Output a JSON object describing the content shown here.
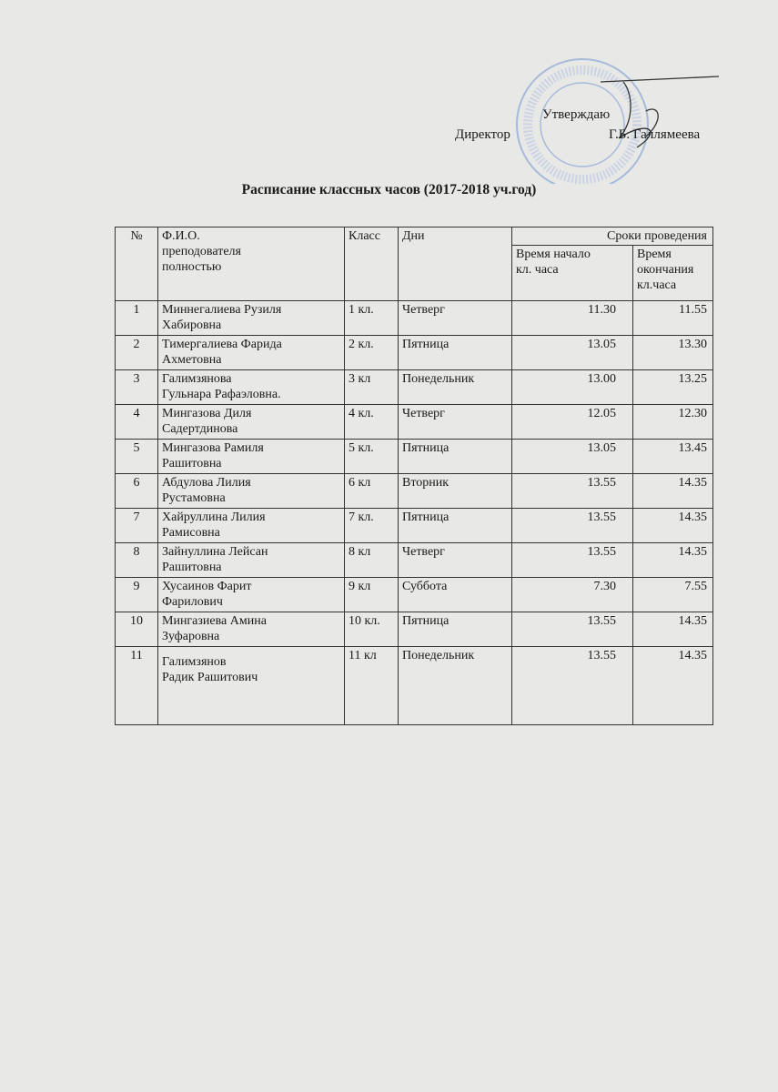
{
  "approval": {
    "approve": "Утверждаю",
    "position": "Директор",
    "name": "Г.Б. Галлямеева"
  },
  "title": "Расписание классных часов (2017-2018 уч.год)",
  "table": {
    "headers": {
      "num": "№",
      "fio_1": "Ф.И.О.",
      "fio_2": "преподователя",
      "fio_3": "полностью",
      "class": "Класс",
      "days": "Дни",
      "period": "Сроки проведения",
      "start_1": "Время начало",
      "start_2": "кл. часа",
      "end_1": "Время",
      "end_2": "окончания",
      "end_3": "кл.часа"
    },
    "rows": [
      {
        "n": "1",
        "name1": "Миннегалиева Рузиля",
        "name2": "Хабировна",
        "cls": "1 кл.",
        "day": "Четверг",
        "start": "11.30",
        "end": "11.55"
      },
      {
        "n": "2",
        "name1": "Тимергалиева Фарида",
        "name2": "Ахметовна",
        "cls": "2 кл.",
        "day": "Пятница",
        "start": "13.05",
        "end": "13.30"
      },
      {
        "n": "3",
        "name1": "Галимзянова",
        "name2": "Гульнара Рафаэловна.",
        "cls": "3 кл",
        "day": "Понедельник",
        "start": "13.00",
        "end": "13.25"
      },
      {
        "n": "4",
        "name1": "Мингазова Диля",
        "name2": "Садертдинова",
        "cls": "4 кл.",
        "day": "Четверг",
        "start": "12.05",
        "end": "12.30"
      },
      {
        "n": "5",
        "name1": "Мингазова Рамиля",
        "name2": "Рашитовна",
        "cls": "5 кл.",
        "day": "Пятница",
        "start": "13.05",
        "end": "13.45"
      },
      {
        "n": "6",
        "name1": "Абдулова Лилия",
        "name2": "Рустамовна",
        "cls": "6 кл",
        "day": "Вторник",
        "start": "13.55",
        "end": "14.35"
      },
      {
        "n": "7",
        "name1": "Хайруллина Лилия",
        "name2": "Рамисовна",
        "cls": "7 кл.",
        "day": "Пятница",
        "start": "13.55",
        "end": "14.35"
      },
      {
        "n": "8",
        "name1": "Зайнуллина Лейсан",
        "name2": "Рашитовна",
        "cls": "8 кл",
        "day": "Четверг",
        "start": "13.55",
        "end": "14.35"
      },
      {
        "n": "9",
        "name1": "Хусаинов Фарит",
        "name2": "Фарилович",
        "cls": "9 кл",
        "day": "Суббота",
        "start": "7.30",
        "end": "7.55"
      },
      {
        "n": "10",
        "name1": "Мингазиева Амина",
        "name2": "Зуфаровна",
        "cls": "10 кл.",
        "day": "Пятница",
        "start": "13.55",
        "end": "14.35"
      },
      {
        "n": "11",
        "name1": "Галимзянов",
        "name2": "Радик Рашитович",
        "cls": "11 кл",
        "day": "Понедельник",
        "start": "13.55",
        "end": "14.35"
      }
    ]
  },
  "colors": {
    "stamp": "#7f9fd0",
    "ink": "#1a1a1a",
    "paper": "#e8e8e6"
  }
}
